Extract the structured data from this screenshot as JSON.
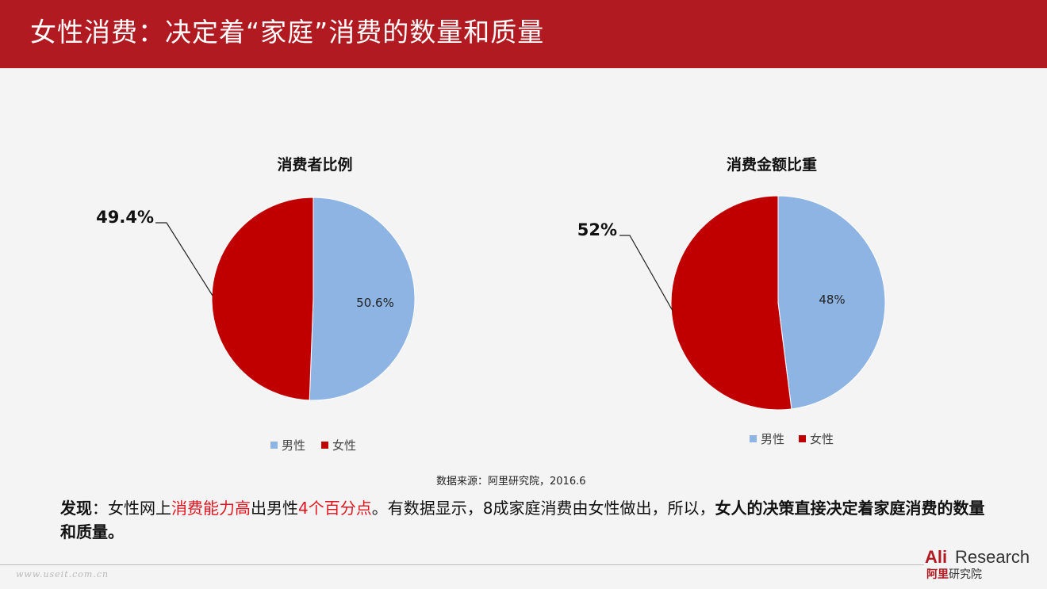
{
  "header": {
    "title": "女性消费：决定着“家庭”消费的数量和质量"
  },
  "chart_data": [
    {
      "type": "pie",
      "title": "消费者比例",
      "categories": [
        "男性",
        "女性"
      ],
      "values": [
        50.6,
        49.4
      ],
      "labels": [
        "50.6%",
        "49.4%"
      ],
      "colors": [
        "#8eb4e3",
        "#c00000"
      ],
      "legend": "bottom"
    },
    {
      "type": "pie",
      "title": "消费金额比重",
      "categories": [
        "男性",
        "女性"
      ],
      "values": [
        48,
        52
      ],
      "labels": [
        "48%",
        "52%"
      ],
      "colors": [
        "#8eb4e3",
        "#c00000"
      ],
      "legend": "bottom"
    }
  ],
  "source": "数据来源：阿里研究院，2016.6",
  "finding": {
    "prefix": "发现",
    "t1": "：女性网上",
    "h1": "消费能力高",
    "t2": "出男性",
    "h2": "4个百分点",
    "t3": "。有数据显示，8成家庭消费由女性做出，所以，",
    "conclusion": "女人的决策直接决定着家庭消费的数量和质量。"
  },
  "watermark": "www.useit.com.cn",
  "logo": {
    "ali": "Ali",
    "research": "Research",
    "cn_red": "阿里",
    "cn_dark": "研究院"
  }
}
